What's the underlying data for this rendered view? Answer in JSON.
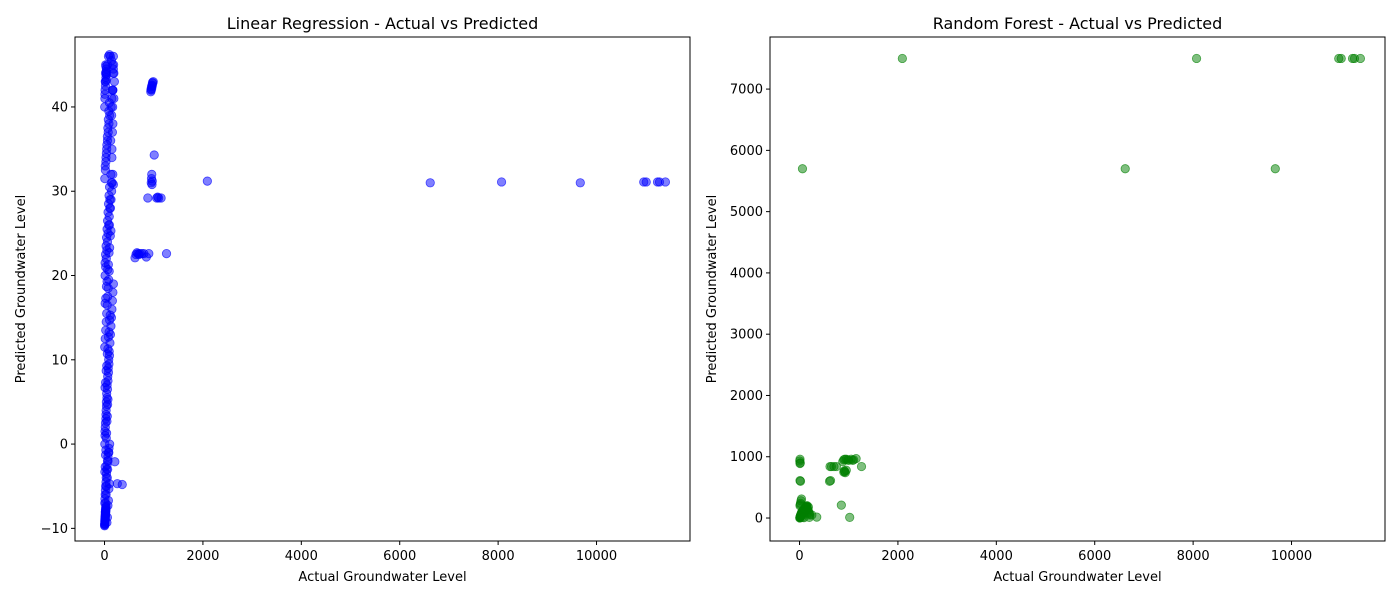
{
  "chart_data": [
    {
      "type": "scatter",
      "title": "Linear Regression - Actual vs Predicted",
      "xlabel": "Actual Groundwater Level",
      "ylabel": "Predicted Groundwater Level",
      "xlim": [
        -600,
        11900
      ],
      "ylim": [
        -11.5,
        48.3
      ],
      "xticks": [
        0,
        2000,
        4000,
        6000,
        8000,
        10000
      ],
      "xtick_labels": [
        "0",
        "2000",
        "4000",
        "6000",
        "8000",
        "10000"
      ],
      "yticks": [
        -10,
        0,
        10,
        20,
        30,
        40
      ],
      "ytick_labels": [
        "−10",
        "0",
        "10",
        "20",
        "30",
        "40"
      ],
      "grid": false,
      "marker_color": "#0000ff",
      "marker_alpha": 0.5,
      "series": [
        {
          "x": [
            5,
            8,
            10,
            12,
            15,
            20,
            25,
            6,
            9,
            14,
            18,
            22,
            30,
            35,
            40,
            45,
            50,
            60,
            70,
            80,
            90,
            7,
            11,
            16,
            28,
            33,
            38,
            44,
            52,
            65,
            75,
            85,
            95,
            110,
            120,
            130,
            140,
            150,
            160,
            170,
            180,
            12,
            24,
            36,
            48,
            60,
            72,
            84,
            96,
            108,
            132,
            144,
            156,
            168,
            15,
            30,
            45,
            60,
            75,
            90,
            105,
            135,
            150,
            165,
            20,
            40,
            60,
            80,
            100,
            120,
            140,
            160,
            180,
            190,
            8,
            16,
            24,
            32,
            40,
            56,
            64,
            72,
            88,
            104,
            10,
            20,
            30,
            40,
            50,
            60,
            70,
            80,
            90,
            100,
            5,
            15,
            25,
            35,
            45,
            55,
            65,
            75,
            85,
            95,
            12,
            22,
            32,
            42,
            52,
            62,
            72,
            82,
            92,
            102,
            6,
            18,
            28,
            38,
            48,
            58,
            68,
            78,
            88,
            98,
            9,
            19,
            29,
            39,
            49,
            59,
            69,
            79,
            89,
            99,
            7,
            14,
            21,
            28,
            35,
            42,
            49,
            56,
            63,
            70,
            11,
            23,
            34,
            46,
            57,
            69,
            80,
            92,
            103,
            115,
            13,
            26,
            39,
            52,
            65,
            78,
            91,
            104,
            117,
            130,
            100,
            120,
            140,
            150,
            160,
            165,
            170,
            175,
            180,
            110,
            130,
            150,
            170,
            190,
            200,
            125,
            145,
            165,
            185,
            3,
            6,
            9,
            12,
            15,
            18,
            21,
            24,
            27,
            30,
            4,
            8,
            12,
            16,
            20,
            24,
            28,
            32,
            36,
            40,
            2,
            5,
            8,
            11,
            14,
            17,
            20,
            23,
            26,
            29,
            210,
            260,
            360,
            180,
            940,
            950,
            960,
            970,
            980,
            990,
            945,
            955,
            965,
            975,
            950,
            955,
            960,
            965,
            970,
            1010,
            880,
            1060,
            1080,
            1100,
            1150,
            620,
            640,
            660,
            680,
            700,
            720,
            760,
            800,
            850,
            900,
            1260,
            2090,
            6620,
            8070,
            9670,
            10960,
            11010,
            11240,
            11280,
            11400
          ],
          "y": [
            -9.5,
            -9.2,
            -8.8,
            -8.5,
            -8.2,
            -7.8,
            -7.5,
            -7,
            -6.5,
            -6,
            -5.5,
            -5,
            -4.5,
            -4,
            -3.5,
            -3,
            -2.5,
            -2,
            -1.5,
            -1,
            -0.5,
            0,
            1,
            2,
            3,
            4,
            5,
            6,
            7,
            8,
            9,
            10,
            11,
            12,
            13,
            14,
            15,
            16,
            17,
            18,
            19,
            20,
            21,
            22,
            23,
            24,
            25,
            26,
            27,
            28,
            29,
            30,
            31,
            32,
            33,
            34,
            35,
            36,
            37,
            38,
            39,
            40,
            41,
            42,
            43,
            44,
            45,
            46,
            46.2,
            46,
            45.5,
            45,
            44.5,
            44,
            -9,
            -8,
            -7,
            -6,
            -5,
            -4,
            -3,
            -2,
            -1,
            0,
            1.5,
            2.5,
            3.5,
            4.5,
            5.5,
            6.5,
            7.5,
            8.5,
            9.5,
            10.5,
            11.5,
            12.5,
            13.5,
            14.5,
            15.5,
            16.5,
            17.5,
            18.5,
            19.5,
            20.5,
            21.5,
            22.5,
            23.5,
            24.5,
            25.5,
            26.5,
            27.5,
            28.5,
            29.5,
            30.5,
            31.5,
            32.5,
            33.5,
            34.5,
            35.5,
            36.5,
            37.5,
            38.5,
            39.5,
            40.5,
            41.5,
            42.5,
            43.5,
            44.5,
            -9.3,
            -8.7,
            -7.3,
            -6.7,
            -5.3,
            -4.7,
            -3.3,
            -2.7,
            -1.3,
            -0.7,
            0.7,
            1.3,
            2.7,
            3.3,
            4.7,
            5.3,
            6.7,
            7.3,
            8.7,
            9.3,
            10.7,
            11.3,
            12.7,
            13.3,
            14.7,
            15.3,
            16.7,
            17.3,
            18.7,
            19.3,
            20.7,
            21.3,
            22.7,
            23.3,
            24.7,
            25.3,
            26,
            28,
            31,
            34,
            37,
            40,
            42,
            44,
            46,
            29,
            32,
            35,
            38,
            41,
            43,
            36,
            39,
            42,
            45,
            -9.6,
            -9.4,
            -9.1,
            -8.9,
            -8.6,
            -8.4,
            -8.1,
            -7.9,
            -7.6,
            -7.4,
            40,
            41,
            42,
            43,
            44,
            45,
            44.8,
            44.2,
            43.8,
            43.2,
            -9.7,
            -9.5,
            -9.2,
            -9,
            -8.8,
            -8.6,
            -8.4,
            -8.2,
            -8,
            -7.8,
            -2.1,
            -4.7,
            -4.8,
            30.8,
            41.8,
            42,
            42.2,
            42.5,
            42.8,
            43,
            42.1,
            42.4,
            42.6,
            42.9,
            31,
            31.5,
            32,
            30.8,
            31.2,
            34.3,
            29.2,
            29.2,
            29.3,
            29.2,
            29.2,
            22.1,
            22.5,
            22.7,
            22.6,
            22.5,
            22.6,
            22.6,
            22.6,
            22.2,
            22.6,
            22.6,
            31.2,
            31,
            31.1,
            31,
            31.1,
            31.1,
            31.1,
            31.1,
            31.1
          ]
        }
      ]
    },
    {
      "type": "scatter",
      "title": "Random Forest - Actual vs Predicted",
      "xlabel": "Actual Groundwater Level",
      "ylabel": "Predicted Groundwater Level",
      "xlim": [
        -600,
        11900
      ],
      "ylim": [
        -375,
        7850
      ],
      "xticks": [
        0,
        2000,
        4000,
        6000,
        8000,
        10000
      ],
      "xtick_labels": [
        "0",
        "2000",
        "4000",
        "6000",
        "8000",
        "10000"
      ],
      "yticks": [
        0,
        1000,
        2000,
        3000,
        4000,
        5000,
        6000,
        7000
      ],
      "ytick_labels": [
        "0",
        "1000",
        "2000",
        "3000",
        "4000",
        "5000",
        "6000",
        "7000"
      ],
      "grid": false,
      "marker_color": "#008000",
      "marker_alpha": 0.5,
      "series": [
        {
          "x": [
            5,
            10,
            15,
            20,
            25,
            30,
            35,
            40,
            45,
            50,
            60,
            70,
            80,
            90,
            100,
            110,
            120,
            130,
            140,
            150,
            160,
            170,
            180,
            190,
            200,
            210,
            8,
            12,
            18,
            22,
            28,
            32,
            38,
            42,
            48,
            55,
            65,
            75,
            85,
            95,
            105,
            115,
            125,
            135,
            145,
            155,
            20,
            40,
            60,
            80,
            100,
            120,
            140,
            160,
            180,
            10,
            15,
            20,
            30,
            40,
            10,
            20,
            10,
            15,
            5,
            10,
            30,
            60,
            90,
            200,
            250,
            350,
            620,
            650,
            700,
            750,
            630,
            610,
            880,
            900,
            920,
            950,
            980,
            1000,
            1050,
            1080,
            1100,
            1150,
            900,
            920,
            950,
            910,
            930,
            1260,
            850,
            1020,
            2090,
            8070,
            10960,
            11010,
            11240,
            11280,
            11400,
            60,
            6620,
            9670
          ],
          "y": [
            0,
            5,
            10,
            20,
            30,
            40,
            50,
            60,
            70,
            80,
            90,
            100,
            110,
            120,
            130,
            140,
            150,
            160,
            170,
            180,
            150,
            130,
            110,
            90,
            70,
            50,
            10,
            25,
            35,
            45,
            55,
            65,
            75,
            85,
            95,
            105,
            115,
            125,
            135,
            145,
            155,
            165,
            175,
            185,
            195,
            200,
            20,
            40,
            60,
            80,
            100,
            120,
            140,
            160,
            180,
            200,
            220,
            240,
            280,
            310,
            610,
            600,
            890,
            900,
            930,
            960,
            30,
            10,
            5,
            10,
            50,
            15,
            840,
            840,
            840,
            840,
            610,
            600,
            920,
            950,
            960,
            960,
            950,
            940,
            960,
            940,
            950,
            970,
            750,
            760,
            780,
            770,
            740,
            840,
            210,
            10,
            7500,
            7500,
            7500,
            7500,
            7500,
            7500,
            7500,
            5700,
            5700,
            5700
          ]
        }
      ]
    }
  ]
}
